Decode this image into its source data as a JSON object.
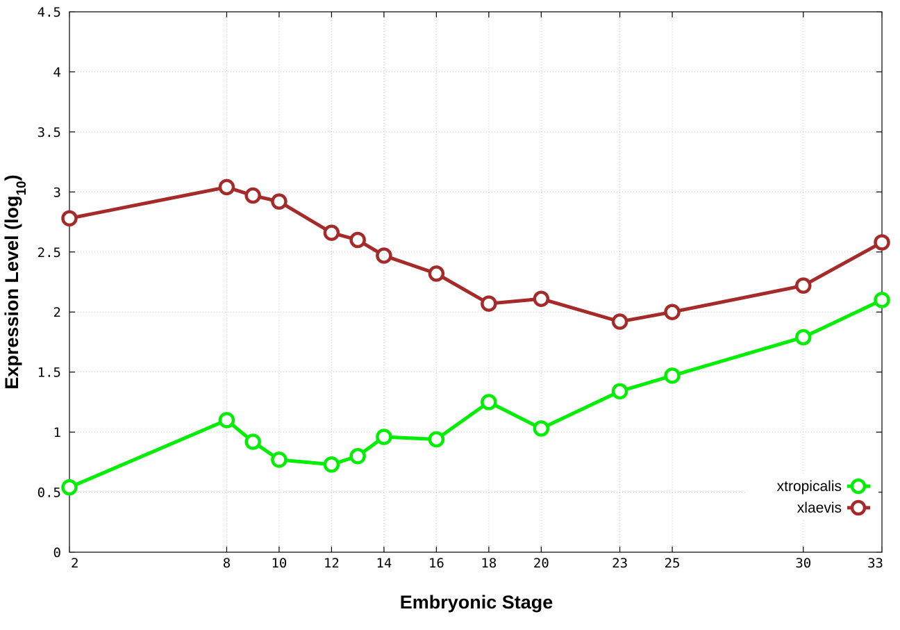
{
  "chart_data": {
    "type": "line",
    "xlabel": "Embryonic Stage",
    "ylabel_main": "Expression Level (log",
    "ylabel_sub": "10",
    "ylabel_close": ")",
    "xlim": [
      2,
      33
    ],
    "ylim": [
      0,
      4.5
    ],
    "x_ticks": [
      2,
      8,
      10,
      12,
      14,
      16,
      18,
      20,
      23,
      25,
      30,
      33
    ],
    "y_ticks": [
      "0",
      "0.5",
      "1",
      "1.5",
      "2",
      "2.5",
      "3",
      "3.5",
      "4",
      "4.5"
    ],
    "grid": true,
    "legend_position": "bottom-right",
    "series": [
      {
        "name": "xtropicalis",
        "color": "#00ee00",
        "x": [
          2,
          8,
          9,
          10,
          12,
          13,
          14,
          16,
          18,
          20,
          23,
          25,
          30,
          33
        ],
        "y": [
          0.54,
          1.1,
          0.92,
          0.77,
          0.73,
          0.8,
          0.96,
          0.94,
          1.25,
          1.03,
          1.34,
          1.47,
          1.79,
          2.1
        ]
      },
      {
        "name": "xlaevis",
        "color": "#a52a2a",
        "x": [
          2,
          8,
          9,
          10,
          12,
          13,
          14,
          16,
          18,
          20,
          23,
          25,
          30,
          33
        ],
        "y": [
          2.78,
          3.04,
          2.97,
          2.92,
          2.66,
          2.6,
          2.47,
          2.32,
          2.07,
          2.11,
          1.92,
          2.0,
          2.22,
          2.58
        ]
      }
    ]
  }
}
